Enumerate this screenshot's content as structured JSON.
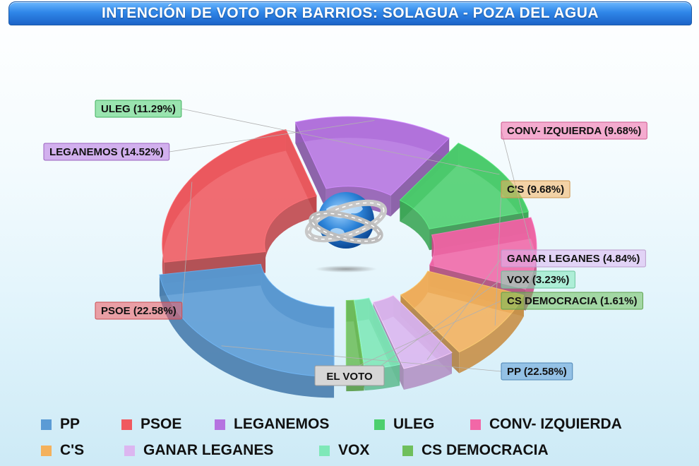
{
  "title": "INTENCIÓN DE VOTO POR BARRIOS: SOLAGUA - POZA DEL AGUA",
  "center_label": "EL VOTO",
  "chart_data": {
    "type": "pie",
    "style": "3d-exploded-donut",
    "title": "INTENCIÓN DE VOTO POR BARRIOS: SOLAGUA - POZA DEL AGUA",
    "legend_position": "bottom",
    "slices": [
      {
        "name": "PP",
        "value": 22.58,
        "label": "PP  (22.58%)",
        "color": "#5b9bd5"
      },
      {
        "name": "PSOE",
        "value": 22.58,
        "label": "PSOE (22.58%)",
        "color": "#f0595f"
      },
      {
        "name": "LEGANEMOS",
        "value": 14.52,
        "label": "LEGANEMOS  (14.52%)",
        "color": "#b573e0"
      },
      {
        "name": "ULEG",
        "value": 11.29,
        "label": "ULEG (11.29%)",
        "color": "#4ccf6e"
      },
      {
        "name": "CONV- IZQUIERDA",
        "value": 9.68,
        "label": "CONV- IZQUIERDA (9.68%)",
        "color": "#f267a7"
      },
      {
        "name": "C'S",
        "value": 9.68,
        "label": "C'S  (9.68%)",
        "color": "#f4b15c"
      },
      {
        "name": "GANAR LEGANES",
        "value": 4.84,
        "label": "GANAR LEGANES (4.84%)",
        "color": "#dcb6f0"
      },
      {
        "name": "VOX",
        "value": 3.23,
        "label": "VOX (3.23%)",
        "color": "#7fe8b8"
      },
      {
        "name": "CS DEMOCRACIA",
        "value": 1.61,
        "label": "CS DEMOCRACIA (1.61%)",
        "color": "#6fbf5c"
      }
    ]
  },
  "legend": [
    {
      "name": "PP",
      "color": "#5b9bd5"
    },
    {
      "name": "PSOE",
      "color": "#f0595f"
    },
    {
      "name": "LEGANEMOS",
      "color": "#b573e0"
    },
    {
      "name": "ULEG",
      "color": "#4ccf6e"
    },
    {
      "name": "CONV- IZQUIERDA",
      "color": "#f267a7"
    },
    {
      "name": "C'S",
      "color": "#f4b15c"
    },
    {
      "name": "GANAR LEGANES",
      "color": "#dcb6f0"
    },
    {
      "name": "VOX",
      "color": "#7fe8b8"
    },
    {
      "name": "CS DEMOCRACIA",
      "color": "#6fbf5c"
    }
  ],
  "icons": {
    "center": "globe-road-icon"
  }
}
